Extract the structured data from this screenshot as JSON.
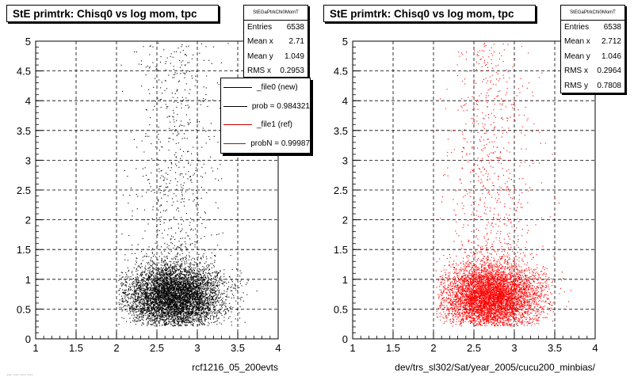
{
  "panels": [
    {
      "id": "left",
      "title": "StE primtrk: Chisq0 vs log mom, tpc",
      "stats": {
        "name": "StEGaPtrkChi0MomT",
        "rows": [
          {
            "label": "Entries",
            "value": "6538"
          },
          {
            "label": "Mean x",
            "value": "2.71"
          },
          {
            "label": "Mean y",
            "value": "1.049"
          },
          {
            "label": "RMS x",
            "value": "0.2953"
          }
        ]
      },
      "legend": [
        {
          "label": "_file0 (new)",
          "color": "#000000"
        },
        {
          "label": "prob = 0.984321",
          "color": "#000000"
        },
        {
          "label": "_file1 (ref)",
          "color": "#cc0000"
        },
        {
          "label": "probN = 0.99987",
          "color": "#cc0000"
        }
      ],
      "xlabel": "rcf1216_05_200evts",
      "footer": "... ... ... ...",
      "marker_color": "#000000"
    },
    {
      "id": "right",
      "title": "StE primtrk: Chisq0 vs log mom, tpc",
      "stats": {
        "name": "StEGaPtrkChi0MomT",
        "rows": [
          {
            "label": "Entries",
            "value": "6538"
          },
          {
            "label": "Mean x",
            "value": "2.712"
          },
          {
            "label": "Mean y",
            "value": "1.046"
          },
          {
            "label": "RMS x",
            "value": "0.2964"
          },
          {
            "label": "RMS y",
            "value": "0.7808"
          }
        ]
      },
      "xlabel": "dev/trs_sl302/Sat/year_2005/cucu200_minbias/",
      "marker_color": "#ff0000"
    }
  ],
  "chart_data": [
    {
      "type": "scatter",
      "title": "StE primtrk: Chisq0 vs log mom, tpc",
      "xlabel": "rcf1216_05_200evts",
      "ylabel": "",
      "xlim": [
        1,
        4
      ],
      "ylim": [
        0,
        5
      ],
      "x_ticks": [
        "1",
        "1.5",
        "2",
        "2.5",
        "3",
        "3.5",
        "4"
      ],
      "y_ticks": [
        "0",
        "0.5",
        "1",
        "1.5",
        "2",
        "2.5",
        "3",
        "3.5",
        "4",
        "4.5",
        "5"
      ],
      "grid": true,
      "entries": 6538,
      "mean_x": 2.71,
      "mean_y": 1.049,
      "rms_x": 0.2953,
      "color": "#000000"
    },
    {
      "type": "scatter",
      "title": "StE primtrk: Chisq0 vs log mom, tpc",
      "xlabel": "dev/trs_sl302/Sat/year_2005/cucu200_minbias/",
      "ylabel": "",
      "xlim": [
        1,
        4
      ],
      "ylim": [
        0,
        5
      ],
      "x_ticks": [
        "1",
        "1.5",
        "2",
        "2.5",
        "3",
        "3.5",
        "4"
      ],
      "y_ticks": [
        "0",
        "0.5",
        "1",
        "1.5",
        "2",
        "2.5",
        "3",
        "3.5",
        "4",
        "4.5",
        "5"
      ],
      "grid": true,
      "entries": 6538,
      "mean_x": 2.712,
      "mean_y": 1.046,
      "rms_x": 0.2964,
      "rms_y": 0.7808,
      "color": "#ff0000"
    }
  ]
}
